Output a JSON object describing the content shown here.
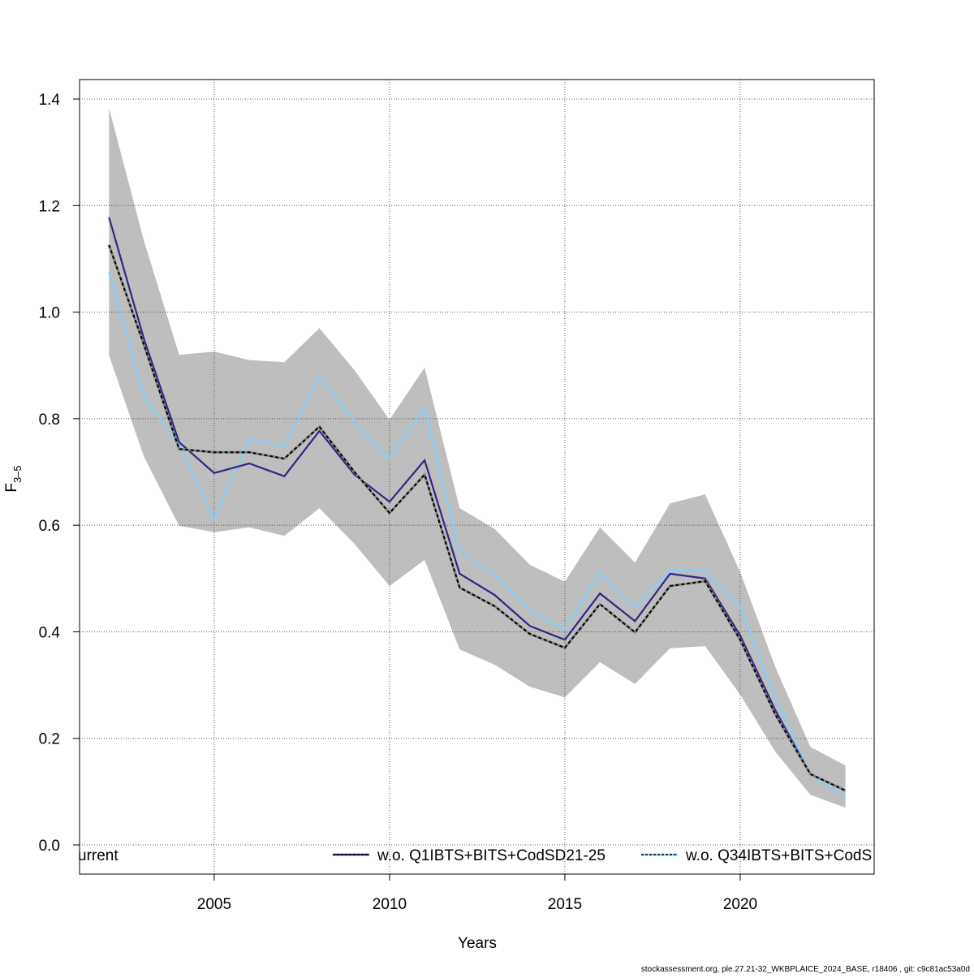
{
  "chart_data": {
    "type": "line",
    "ylabel": {
      "text": "F",
      "subscript": "3–5"
    },
    "xlabel": "Years",
    "footer": "stockassessment.org, ple.27.21-32_WKBPLAICE_2024_BASE, r18406 , git: c9c81ac53a0d",
    "x": [
      2002,
      2003,
      2004,
      2005,
      2006,
      2007,
      2008,
      2009,
      2010,
      2011,
      2012,
      2013,
      2014,
      2015,
      2016,
      2017,
      2018,
      2019,
      2020,
      2021,
      2022,
      2023
    ],
    "band": {
      "color": "#bebebe",
      "upper": [
        1.383,
        1.133,
        0.92,
        0.926,
        0.91,
        0.906,
        0.97,
        0.891,
        0.798,
        0.896,
        0.632,
        0.593,
        0.526,
        0.494,
        0.596,
        0.53,
        0.641,
        0.658,
        0.512,
        0.334,
        0.184,
        0.149
      ],
      "lower": [
        0.919,
        0.728,
        0.599,
        0.587,
        0.596,
        0.58,
        0.632,
        0.565,
        0.486,
        0.535,
        0.367,
        0.338,
        0.297,
        0.277,
        0.343,
        0.302,
        0.369,
        0.373,
        0.282,
        0.175,
        0.094,
        0.07
      ]
    },
    "series": [
      {
        "name": "urrent",
        "color": "#000000",
        "dashed": true,
        "values": [
          1.126,
          0.938,
          0.743,
          0.737,
          0.737,
          0.725,
          0.785,
          0.7,
          0.623,
          0.695,
          0.483,
          0.448,
          0.396,
          0.37,
          0.452,
          0.399,
          0.486,
          0.495,
          0.385,
          0.245,
          0.133,
          0.102
        ]
      },
      {
        "name": "w.o. Q1IBTS+BITS+CodSD21-25",
        "color": "#2e2785",
        "dashed": false,
        "values": [
          1.178,
          0.949,
          0.756,
          0.698,
          0.716,
          0.692,
          0.777,
          0.695,
          0.644,
          0.722,
          0.509,
          0.469,
          0.411,
          0.385,
          0.472,
          0.42,
          0.509,
          0.5,
          0.393,
          0.253,
          0.133,
          0.102
        ]
      },
      {
        "name": "w.o. Q34IBTS+BITS+CodS",
        "color": "#87cefa",
        "dashed": false,
        "values": [
          1.076,
          0.842,
          0.751,
          0.611,
          0.763,
          0.748,
          0.881,
          0.794,
          0.725,
          0.821,
          0.55,
          0.507,
          0.44,
          0.405,
          0.509,
          0.446,
          0.515,
          0.515,
          0.446,
          0.276,
          0.133,
          0.09
        ]
      }
    ],
    "xlim": [
      2001.16,
      2023.82
    ],
    "ylim": [
      -0.0548,
      1.4366
    ],
    "xticks": [
      2005,
      2010,
      2015,
      2020
    ],
    "yticks": [
      {
        "value": 0,
        "label": "0.0"
      },
      {
        "value": 0.2,
        "label": "0.2"
      },
      {
        "value": 0.4,
        "label": "0.4"
      },
      {
        "value": 0.6,
        "label": "0.6"
      },
      {
        "value": 0.8,
        "label": "0.8"
      },
      {
        "value": 1,
        "label": "1.0"
      },
      {
        "value": 1.2,
        "label": "1.2"
      },
      {
        "value": 1.4,
        "label": "1.4"
      }
    ],
    "grid": true
  }
}
